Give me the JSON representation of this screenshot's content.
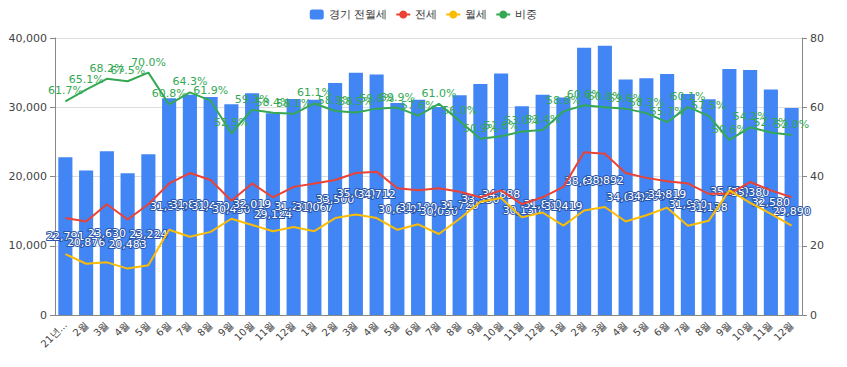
{
  "chart_data": {
    "type": "bar",
    "categories": [
      "21년...",
      "2월",
      "3월",
      "4월",
      "5월",
      "6월",
      "7월",
      "8월",
      "9월",
      "10월",
      "11월",
      "12월",
      "1월",
      "2월",
      "3월",
      "4월",
      "5월",
      "6월",
      "7월",
      "8월",
      "9월",
      "10월",
      "11월",
      "12월",
      "1월",
      "2월",
      "3월",
      "4월",
      "5월",
      "6월",
      "7월",
      "8월",
      "9월",
      "10월",
      "11월",
      "12월"
    ],
    "ylim": [
      0,
      40000
    ],
    "yticks": [
      0,
      {
        "value": 10000,
        "label": "10,000"
      },
      {
        "value": 20000,
        "label": "20,000"
      },
      {
        "value": 30000,
        "label": "30,000"
      },
      {
        "value": 40000,
        "label": "40,000"
      }
    ],
    "y2lim": [
      0,
      80
    ],
    "y2ticks": [
      0,
      20,
      40,
      60,
      80
    ],
    "grid": true,
    "legend": "top",
    "series": [
      {
        "name": "경기 전월세",
        "type": "bar",
        "color": "#4285f4",
        "data_labels": true,
        "values": [
          22791,
          20876,
          23630,
          20483,
          23224,
          31300,
          31800,
          31470,
          30430,
          32019,
          29124,
          31200,
          31067,
          33500,
          35000,
          34712,
          30600,
          31100,
          30030,
          31720,
          33350,
          34888,
          30130,
          31800,
          31419,
          38600,
          38892,
          34000,
          34200,
          34819,
          31900,
          31138,
          35530,
          35380,
          32580,
          29890
        ],
        "value_labels": [
          "22,791",
          "20,876",
          "23,630",
          "20,483",
          "23,224",
          "31,300",
          "31,800",
          "31,470",
          "30,430",
          "32,019",
          "29,124",
          "31,200",
          "31,067",
          "33,500",
          "35,000",
          "34,712",
          "30,600",
          "31,100",
          "30,030",
          "31,720",
          "33,350",
          "34,888",
          "30,130",
          "31,800",
          "31,419",
          "38,600",
          "38,892",
          "34,000",
          "34,200",
          "34,819",
          "31,900",
          "31,138",
          "35,530",
          "35,380",
          "32,580",
          "29,890"
        ]
      },
      {
        "name": "전세",
        "type": "line",
        "color": "#ea4335",
        "data_labels": false,
        "values": [
          14000,
          13500,
          16000,
          13800,
          16000,
          19000,
          20500,
          19500,
          16500,
          19000,
          17000,
          18500,
          19000,
          19500,
          20500,
          20700,
          18300,
          18000,
          18300,
          17800,
          17000,
          18000,
          16000,
          17000,
          18500,
          23500,
          23300,
          20500,
          19800,
          19300,
          19000,
          17500,
          17500,
          19200,
          18000,
          17000
        ]
      },
      {
        "name": "월세",
        "type": "line",
        "color": "#fbbc04",
        "data_labels": false,
        "values": [
          8800,
          7400,
          7600,
          6700,
          7200,
          12300,
          11300,
          12000,
          13900,
          13000,
          12100,
          12700,
          12100,
          14000,
          14500,
          14000,
          12300,
          13100,
          11700,
          13900,
          16350,
          16900,
          14100,
          14800,
          12900,
          15100,
          15600,
          13500,
          14400,
          15500,
          12900,
          13600,
          18000,
          16200,
          14600,
          12900
        ]
      },
      {
        "name": "비중",
        "type": "line",
        "color": "#34a853",
        "axis": "y2",
        "data_labels": true,
        "values": [
          61.7,
          65.1,
          68.2,
          67.5,
          70.0,
          60.8,
          64.3,
          61.9,
          52.5,
          59.3,
          58.4,
          58.1,
          61.1,
          58.9,
          58.5,
          59.6,
          59.9,
          57.6,
          61.0,
          56.0,
          50.9,
          51.6,
          53.0,
          53.4,
          58.8,
          60.6,
          60.0,
          59.6,
          58.3,
          55.7,
          60.1,
          57.5,
          50.6,
          54.2,
          52.7,
          52.0
        ],
        "value_labels": [
          "61.7%",
          "65.1%",
          "68.2%",
          "67.5%",
          "70.0%",
          "60.8%",
          "64.3%",
          "61.9%",
          "52.5%",
          "59.3%",
          "58.4%",
          "58.1%",
          "61.1%",
          "58.9%",
          "58.5%",
          "59.6%",
          "59.9%",
          "57.6%",
          "61.0%",
          "56.0%",
          "50.9%",
          "51.6%",
          "53.0%",
          "53.4%",
          "58.8%",
          "60.6%",
          "60.0%",
          "59.6%",
          "58.3%",
          "55.7%",
          "60.1%",
          "57.5%",
          "50.6%",
          "54.2%",
          "52.7%",
          "52.0%"
        ]
      }
    ]
  }
}
